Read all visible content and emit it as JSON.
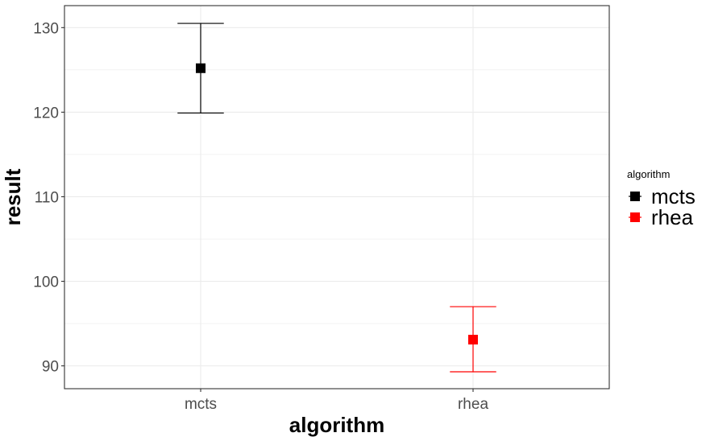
{
  "chart_data": {
    "type": "errorbar",
    "categories": [
      "mcts",
      "rhea"
    ],
    "series": [
      {
        "name": "mcts",
        "color": "#000000",
        "x": "mcts",
        "y": 125.2,
        "ymin": 119.9,
        "ymax": 130.5
      },
      {
        "name": "rhea",
        "color": "#ff0000",
        "x": "rhea",
        "y": 93.1,
        "ymin": 89.3,
        "ymax": 97.0
      }
    ],
    "xlabel": "algorithm",
    "ylabel": "result",
    "ylim": [
      87.3,
      132.6
    ],
    "yticks": [
      90,
      100,
      110,
      120,
      130
    ],
    "ytick_labels": [
      "90",
      "100",
      "110",
      "120",
      "130"
    ],
    "grid": true,
    "legend": {
      "title": "algorithm",
      "position": "right",
      "entries": [
        "mcts",
        "rhea"
      ]
    }
  }
}
